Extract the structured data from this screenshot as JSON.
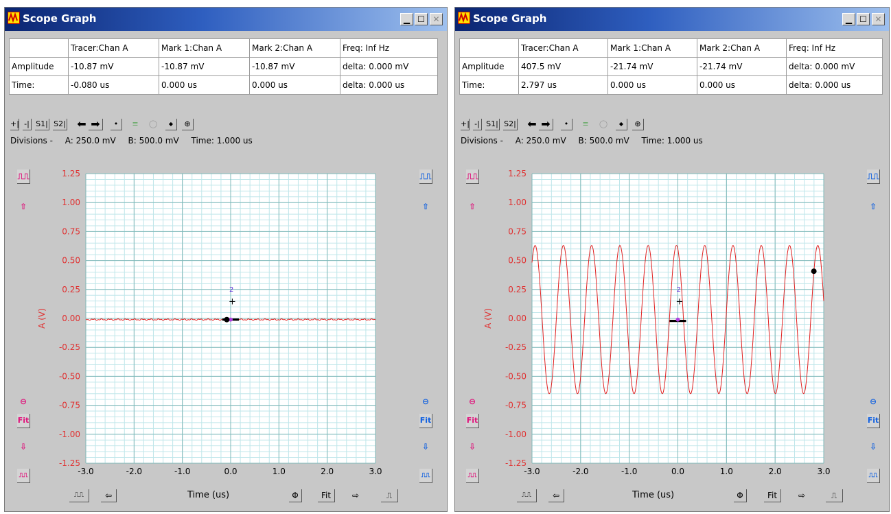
{
  "windows": [
    {
      "title": "Scope Graph",
      "table": {
        "headers": [
          "",
          "Tracer:Chan A",
          "Mark 1:Chan A",
          "Mark 2:Chan A",
          "Freq:  Inf Hz"
        ],
        "rows": [
          [
            "Amplitude",
            "-10.87 mV",
            "-10.87 mV",
            "-10.87 mV",
            "delta:  0.000 mV"
          ],
          [
            "Time:",
            "-0.080 us",
            "0.000 us",
            "0.000 us",
            "delta:  0.000 us"
          ]
        ]
      },
      "toolbar": [
        "+|",
        "-|",
        "S1|",
        "S2|",
        "⬅",
        "➡",
        "•",
        "≡",
        "◯",
        "◆",
        "⊕"
      ],
      "divisions": {
        "label": "Divisions -",
        "a": "A: 250.0 mV",
        "b": "B: 500.0 mV",
        "time": "Time: 1.000 us"
      },
      "chart_data": {
        "type": "line",
        "title": "",
        "xlabel": "Time (us)",
        "ylabel": "A (V)",
        "xlim": [
          -3.0,
          3.0
        ],
        "ylim": [
          -1.25,
          1.25
        ],
        "x_ticks": [
          "-3.0",
          "-2.0",
          "-1.0",
          "0.0",
          "1.0",
          "2.0",
          "3.0"
        ],
        "y_ticks": [
          "1.25",
          "1.00",
          "0.75",
          "0.50",
          "0.25",
          "0.00",
          "-0.25",
          "-0.50",
          "-0.75",
          "-1.00",
          "-1.25"
        ],
        "series": [
          {
            "color": "#e02020",
            "waveform": "flat",
            "amplitude_v": 0.0,
            "frequency_mhz": 0,
            "offset_v": -0.01
          }
        ],
        "tracer": {
          "x": -0.08,
          "y": -0.01
        },
        "marks": [
          {
            "x": 0.0,
            "y": -0.01
          },
          {
            "x": 0.0,
            "y": -0.01
          }
        ],
        "grid": true
      },
      "side_left": [
        "⎍⎍",
        "⇧",
        "⊖",
        "Fit",
        "⇩",
        "⎍⎍"
      ],
      "side_right": [
        "⎍⎍",
        "⇧",
        "⊖",
        "Fit",
        "⇩",
        "⎍⎍"
      ],
      "bottom": {
        "left_buttons": [
          "⎍⎍",
          "⇦"
        ],
        "right_buttons": [
          "Φ",
          "Fit",
          "⇨",
          "⎍"
        ]
      }
    },
    {
      "title": "Scope Graph",
      "table": {
        "headers": [
          "",
          "Tracer:Chan A",
          "Mark 1:Chan A",
          "Mark 2:Chan A",
          "Freq:  Inf Hz"
        ],
        "rows": [
          [
            "Amplitude",
            "407.5 mV",
            "-21.74 mV",
            "-21.74 mV",
            "delta:  0.000 mV"
          ],
          [
            "Time:",
            "2.797 us",
            "0.000 us",
            "0.000 us",
            "delta:  0.000 us"
          ]
        ]
      },
      "toolbar": [
        "+|",
        "-|",
        "S1|",
        "S2|",
        "⬅",
        "➡",
        "•",
        "≡",
        "◯",
        "◆",
        "⊕"
      ],
      "divisions": {
        "label": "Divisions -",
        "a": "A: 250.0 mV",
        "b": "B: 500.0 mV",
        "time": "Time: 1.000 us"
      },
      "chart_data": {
        "type": "line",
        "title": "",
        "xlabel": "Time (us)",
        "ylabel": "A (V)",
        "xlim": [
          -3.0,
          3.0
        ],
        "ylim": [
          -1.25,
          1.25
        ],
        "x_ticks": [
          "-3.0",
          "-2.0",
          "-1.0",
          "0.0",
          "1.0",
          "2.0",
          "3.0"
        ],
        "y_ticks": [
          "1.25",
          "1.00",
          "0.75",
          "0.50",
          "0.25",
          "0.00",
          "-0.25",
          "-0.50",
          "-0.75",
          "-1.00",
          "-1.25"
        ],
        "series": [
          {
            "color": "#e02020",
            "waveform": "sine",
            "amplitude_v": 0.64,
            "frequency_mhz": 1.72,
            "offset_v": -0.01
          }
        ],
        "tracer": {
          "x": 2.797,
          "y": 0.4075
        },
        "marks": [
          {
            "x": 0.0,
            "y": -0.02174
          },
          {
            "x": 0.0,
            "y": -0.02174
          }
        ],
        "grid": true
      },
      "side_left": [
        "⎍⎍",
        "⇧",
        "⊖",
        "Fit",
        "⇩",
        "⎍⎍"
      ],
      "side_right": [
        "⎍⎍",
        "⇧",
        "⊖",
        "Fit",
        "⇩",
        "⎍⎍"
      ],
      "bottom": {
        "left_buttons": [
          "⎍⎍",
          "⇦"
        ],
        "right_buttons": [
          "Φ",
          "Fit",
          "⇨",
          "⎍"
        ]
      }
    }
  ]
}
